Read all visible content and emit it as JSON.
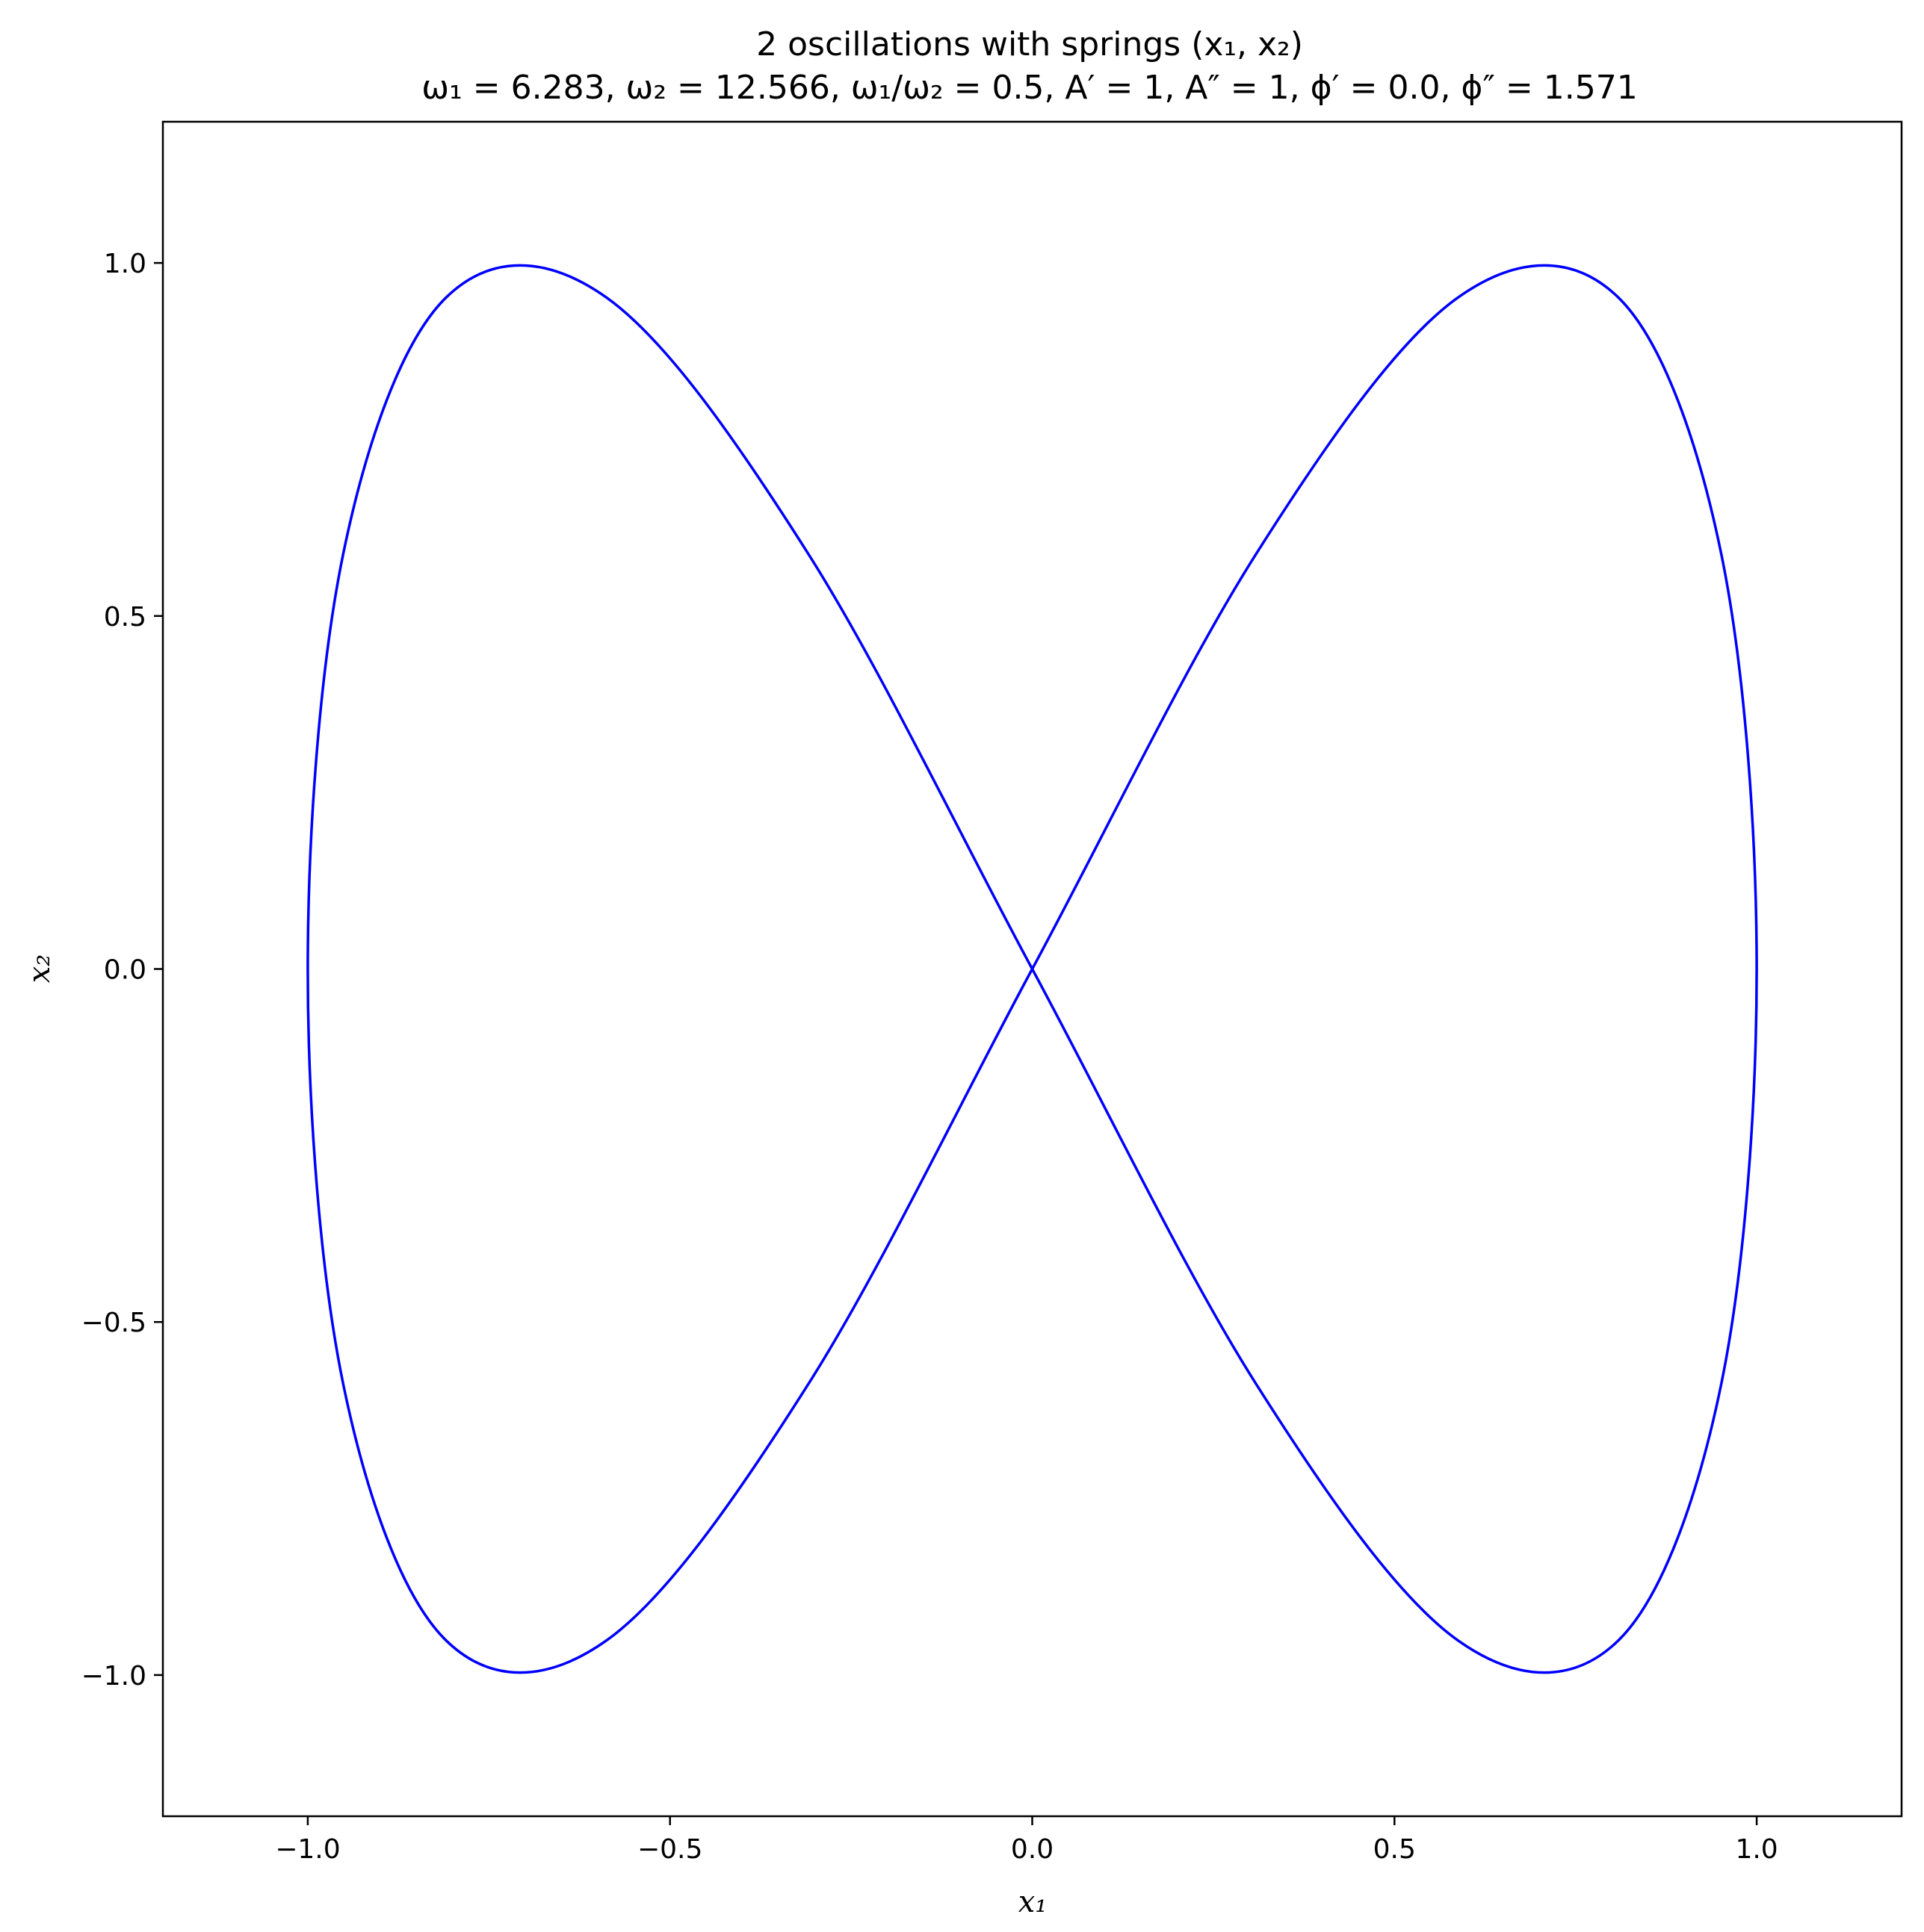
{
  "chart_data": {
    "type": "line",
    "title": "2 oscillations with springs (x₁, x₂)",
    "subtitle": "ω₁ = 6.283, ω₂ = 12.566, ω₁/ω₂ = 0.5, A′ = 1, A″ = 1, ϕ′ = 0.0, ϕ″ = 1.571",
    "xlabel": "x₁",
    "ylabel": "x₂",
    "xlim": [
      -1.2,
      1.2
    ],
    "ylim": [
      -1.2,
      1.2
    ],
    "xticks": [
      -1.0,
      -0.5,
      0.0,
      0.5,
      1.0
    ],
    "yticks": [
      -1.0,
      -0.5,
      0.0,
      0.5,
      1.0
    ],
    "xtick_labels": [
      "−1.0",
      "−0.5",
      "0.0",
      "0.5",
      "1.0"
    ],
    "ytick_labels": [
      "−1.0",
      "−0.5",
      "0.0",
      "0.5",
      "1.0"
    ],
    "grid": false,
    "legend": "none",
    "series": [
      {
        "color": "#0000ff",
        "x": [
          1.0,
          0.9511,
          0.809,
          0.5878,
          0.309,
          0.0,
          -0.309,
          -0.5878,
          -0.809,
          -0.9511,
          -1.0,
          -0.9511,
          -0.809,
          -0.5878,
          -0.309,
          0.0,
          0.309,
          0.5878,
          0.809,
          0.9511,
          1.0
        ],
        "y": [
          0.0,
          0.5878,
          0.9511,
          0.9511,
          0.5878,
          0.0,
          -0.5878,
          -0.9511,
          -0.9511,
          -0.5878,
          0.0,
          0.5878,
          0.9511,
          0.9511,
          0.5878,
          0.0,
          -0.5878,
          -0.9511,
          -0.9511,
          -0.5878,
          0.0
        ]
      }
    ]
  }
}
